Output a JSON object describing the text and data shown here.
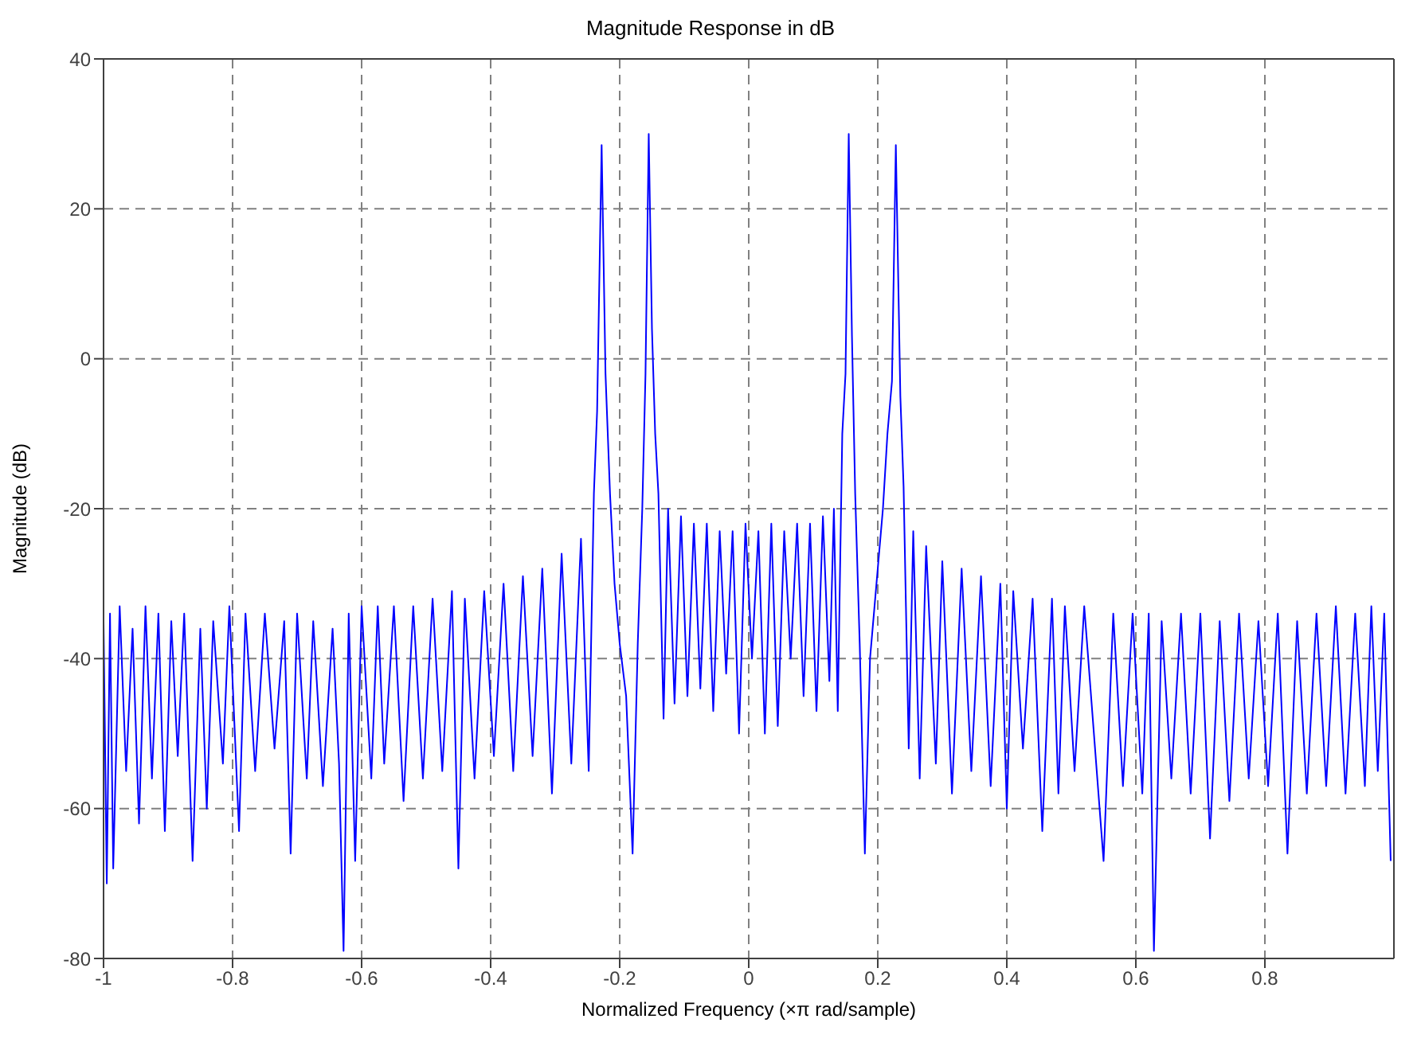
{
  "chart_data": {
    "type": "line",
    "title": "Magnitude Response in dB",
    "xlabel": "Normalized Frequency  (×π rad/sample)",
    "ylabel": "Magnitude (dB)",
    "xlim": [
      -1,
      1
    ],
    "xticks": [
      -1,
      -0.8,
      -0.6,
      -0.4,
      -0.2,
      0,
      0.2,
      0.4,
      0.6,
      0.8
    ],
    "ylim": [
      -80,
      40
    ],
    "yticks": [
      -80,
      -60,
      -40,
      -20,
      0,
      20,
      40
    ],
    "grid": true,
    "line_style": "solid",
    "series": [
      {
        "color": "#0000ff",
        "x": [
          -1,
          -0.995,
          -0.99,
          -0.985,
          -0.975,
          -0.965,
          -0.955,
          -0.945,
          -0.935,
          -0.925,
          -0.915,
          -0.905,
          -0.895,
          -0.885,
          -0.875,
          -0.862,
          -0.85,
          -0.84,
          -0.83,
          -0.815,
          -0.805,
          -0.79,
          -0.78,
          -0.765,
          -0.75,
          -0.735,
          -0.72,
          -0.71,
          -0.7,
          -0.685,
          -0.675,
          -0.66,
          -0.645,
          -0.635,
          -0.628,
          -0.62,
          -0.61,
          -0.6,
          -0.585,
          -0.575,
          -0.565,
          -0.55,
          -0.535,
          -0.52,
          -0.505,
          -0.49,
          -0.475,
          -0.46,
          -0.45,
          -0.44,
          -0.425,
          -0.41,
          -0.395,
          -0.38,
          -0.365,
          -0.35,
          -0.335,
          -0.32,
          -0.305,
          -0.29,
          -0.275,
          -0.26,
          -0.248,
          -0.24,
          -0.235,
          -0.228,
          -0.222,
          -0.215,
          -0.208,
          -0.2,
          -0.19,
          -0.18,
          -0.172,
          -0.165,
          -0.16,
          -0.155,
          -0.15,
          -0.145,
          -0.14,
          -0.132,
          -0.125,
          -0.115,
          -0.105,
          -0.095,
          -0.085,
          -0.075,
          -0.065,
          -0.055,
          -0.045,
          -0.035,
          -0.025,
          -0.015,
          -0.005,
          0.005,
          0.015,
          0.025,
          0.035,
          0.045,
          0.055,
          0.065,
          0.075,
          0.085,
          0.095,
          0.105,
          0.115,
          0.125,
          0.132,
          0.138,
          0.145,
          0.15,
          0.155,
          0.16,
          0.165,
          0.172,
          0.18,
          0.188,
          0.198,
          0.208,
          0.215,
          0.222,
          0.228,
          0.235,
          0.24,
          0.248,
          0.255,
          0.265,
          0.275,
          0.29,
          0.3,
          0.315,
          0.33,
          0.345,
          0.36,
          0.375,
          0.39,
          0.4,
          0.41,
          0.425,
          0.44,
          0.455,
          0.47,
          0.48,
          0.49,
          0.505,
          0.52,
          0.55,
          0.565,
          0.58,
          0.595,
          0.61,
          0.62,
          0.628,
          0.64,
          0.655,
          0.67,
          0.685,
          0.7,
          0.715,
          0.73,
          0.745,
          0.76,
          0.775,
          0.79,
          0.805,
          0.82,
          0.835,
          0.85,
          0.865,
          0.88,
          0.895,
          0.91,
          0.925,
          0.94,
          0.955,
          0.965,
          0.975,
          0.985,
          0.995
        ],
        "values": [
          -35,
          -70,
          -34,
          -68,
          -33,
          -55,
          -36,
          -62,
          -33,
          -56,
          -34,
          -63,
          -35,
          -53,
          -34,
          -67,
          -36,
          -60,
          -35,
          -54,
          -33,
          -63,
          -34,
          -55,
          -34,
          -52,
          -35,
          -66,
          -34,
          -56,
          -35,
          -57,
          -36,
          -54,
          -79,
          -34,
          -67,
          -33,
          -56,
          -33,
          -54,
          -33,
          -59,
          -33,
          -56,
          -32,
          -55,
          -31,
          -68,
          -32,
          -56,
          -31,
          -53,
          -30,
          -55,
          -29,
          -53,
          -28,
          -58,
          -26,
          -54,
          -24,
          -55,
          -18,
          -7,
          28.5,
          -2,
          -18,
          -30,
          -38,
          -45,
          -66,
          -38,
          -20,
          -2,
          30,
          4,
          -10,
          -18,
          -48,
          -20,
          -46,
          -21,
          -45,
          -22,
          -44,
          -22,
          -47,
          -23,
          -42,
          -23,
          -50,
          -22,
          -40,
          -23,
          -50,
          -22,
          -49,
          -23,
          -40,
          -22,
          -45,
          -22,
          -47,
          -21,
          -43,
          -20,
          -47,
          -10,
          -2,
          30,
          3,
          -18,
          -38,
          -66,
          -40,
          -30,
          -20,
          -10,
          -3,
          28.5,
          -5,
          -17,
          -52,
          -23,
          -56,
          -25,
          -54,
          -27,
          -58,
          -28,
          -55,
          -29,
          -57,
          -30,
          -60,
          -31,
          -52,
          -32,
          -63,
          -32,
          -58,
          -33,
          -55,
          -33,
          -67,
          -34,
          -57,
          -34,
          -58,
          -34,
          -79,
          -35,
          -56,
          -34,
          -58,
          -34,
          -64,
          -35,
          -59,
          -34,
          -56,
          -35,
          -57,
          -34,
          -66,
          -35,
          -58,
          -34,
          -57,
          -33,
          -58,
          -34,
          -57,
          -33,
          -55,
          -34,
          -67
        ]
      }
    ]
  }
}
